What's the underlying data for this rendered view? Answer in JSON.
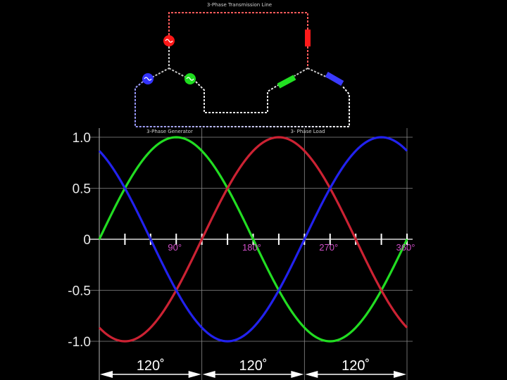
{
  "circuit": {
    "transmission_label": "3-Phase Transmission Line",
    "generator_label": "3-Phase Generator",
    "load_label": "3- Phase Load",
    "phase_colors": {
      "a": "#ff2020",
      "b": "#22ee22",
      "c": "#3333ff"
    }
  },
  "chart_data": {
    "type": "line",
    "y_ticks": [
      "1.0",
      "0.5",
      "0",
      "-0.5",
      "-1.0"
    ],
    "y_tick_values": [
      1.0,
      0.5,
      0,
      -0.5,
      -1.0
    ],
    "ylim": [
      -1.0,
      1.0
    ],
    "x_unit": "degrees",
    "x_range": [
      0,
      360
    ],
    "x_tick_labels": [
      {
        "text": "90°",
        "value": 90
      },
      {
        "text": "180°",
        "value": 180
      },
      {
        "text": "270°",
        "value": 270
      },
      {
        "text": "360°",
        "value": 360
      }
    ],
    "minor_tick_step_deg": 30,
    "grid": true,
    "series": [
      {
        "color": "#22dd22",
        "phase_deg": 0,
        "function": "sin(x)"
      },
      {
        "color": "#cc2233",
        "phase_deg": 120,
        "function": "sin(x - 120)"
      },
      {
        "color": "#2222ee",
        "phase_deg": 240,
        "function": "sin(x - 240)"
      }
    ],
    "spans": [
      {
        "text": "120˚",
        "from": 0,
        "to": 120
      },
      {
        "text": "120˚",
        "from": 120,
        "to": 240
      },
      {
        "text": "120˚",
        "from": 240,
        "to": 360
      }
    ]
  }
}
